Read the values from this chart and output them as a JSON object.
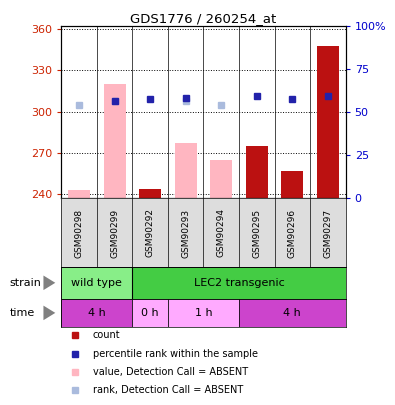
{
  "title": "GDS1776 / 260254_at",
  "samples": [
    "GSM90298",
    "GSM90299",
    "GSM90292",
    "GSM90293",
    "GSM90294",
    "GSM90295",
    "GSM90296",
    "GSM90297"
  ],
  "bar_values_pink": [
    243,
    320,
    244,
    277,
    265,
    0,
    0,
    0
  ],
  "bar_values_red": [
    0,
    0,
    244,
    0,
    0,
    275,
    257,
    348
  ],
  "rank_light_blue": [
    305,
    308,
    0,
    308,
    305,
    0,
    0,
    0
  ],
  "rank_dark_blue": [
    0,
    308,
    309,
    310,
    0,
    311,
    309,
    311
  ],
  "ylim_left": [
    237,
    362
  ],
  "ylim_right": [
    0,
    100
  ],
  "yticks_left": [
    240,
    270,
    300,
    330,
    360
  ],
  "yticks_right": [
    0,
    25,
    50,
    75,
    100
  ],
  "bar_color_pink": "#FFB6C1",
  "bar_color_red": "#BB1111",
  "dot_color_light": "#AABBDD",
  "dot_color_dark": "#2222AA",
  "left_axis_color": "#CC2200",
  "right_axis_color": "#0000CC",
  "strain_wt_color": "#88EE88",
  "strain_lec2_color": "#44CC44",
  "time_dark_color": "#CC44CC",
  "time_light_color": "#FFAAFF",
  "legend_items": [
    {
      "label": "count",
      "color": "#BB1111"
    },
    {
      "label": "percentile rank within the sample",
      "color": "#2222AA"
    },
    {
      "label": "value, Detection Call = ABSENT",
      "color": "#FFB6C1"
    },
    {
      "label": "rank, Detection Call = ABSENT",
      "color": "#AABBDD"
    }
  ]
}
